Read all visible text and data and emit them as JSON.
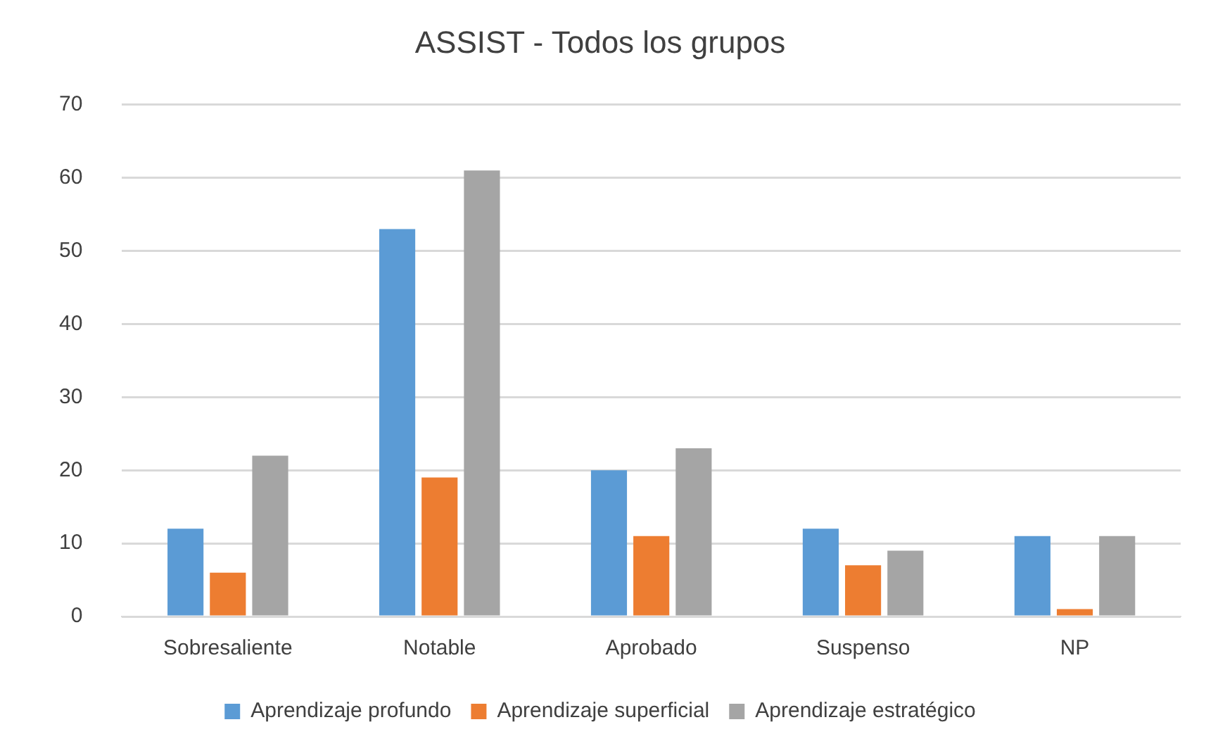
{
  "chart_data": {
    "type": "bar",
    "title": "ASSIST - Todos los grupos",
    "categories": [
      "Sobresaliente",
      "Notable",
      "Aprobado",
      "Suspenso",
      "NP"
    ],
    "series": [
      {
        "name": "Aprendizaje profundo",
        "color": "#5b9bd5",
        "values": [
          12,
          53,
          20,
          12,
          11
        ]
      },
      {
        "name": "Aprendizaje superficial",
        "color": "#ed7d31",
        "values": [
          6,
          19,
          11,
          7,
          1
        ]
      },
      {
        "name": "Aprendizaje estratégico",
        "color": "#a5a5a5",
        "values": [
          22,
          61,
          23,
          9,
          11
        ]
      }
    ],
    "ylim": [
      0,
      70
    ],
    "yticks": [
      0,
      10,
      20,
      30,
      40,
      50,
      60,
      70
    ],
    "grid": "y",
    "legend": "bottom"
  }
}
